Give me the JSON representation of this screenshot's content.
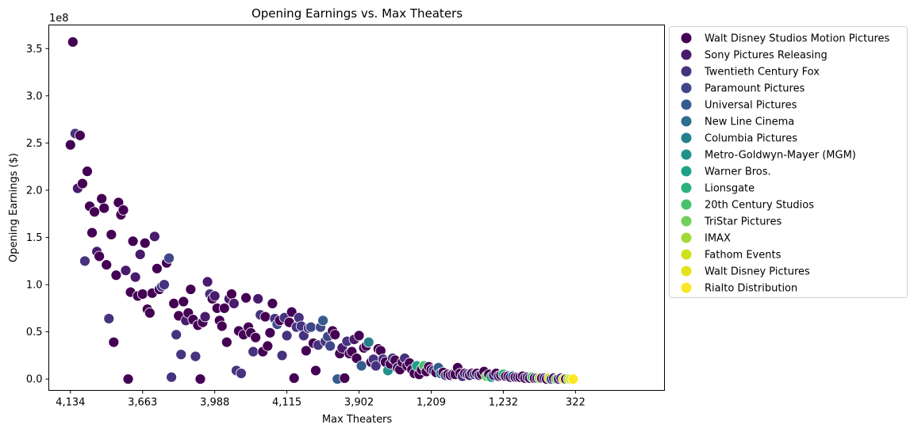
{
  "chart_data": {
    "type": "scatter",
    "title": "Opening Earnings vs. Max Theaters",
    "xlabel": "Max Theaters",
    "ylabel": "Opening Earnings ($)",
    "y_offset_label": "1e8",
    "ylim": [
      -0.12,
      3.75
    ],
    "y_scale_multiplier": 100000000,
    "y_ticks": [
      "0.0",
      "0.5",
      "1.0",
      "1.5",
      "2.0",
      "2.5",
      "3.0",
      "3.5"
    ],
    "x_tick_labels": [
      "4,134",
      "3,663",
      "3,988",
      "4,115",
      "3,902",
      "1,209",
      "1,232",
      "322"
    ],
    "x_axis_note": "categorical movie index axis, x values are ranks 0-235",
    "xlim": [
      -9,
      247
    ],
    "legend_position": "outside-right",
    "grid": false,
    "legend": [
      {
        "name": "Walt Disney Studios Motion Pictures",
        "color": "#440154"
      },
      {
        "name": "Sony Pictures Releasing",
        "color": "#481b6d"
      },
      {
        "name": "Twentieth Century Fox",
        "color": "#46327e"
      },
      {
        "name": "Paramount Pictures",
        "color": "#3f4788"
      },
      {
        "name": "Universal Pictures",
        "color": "#365c8d"
      },
      {
        "name": "New Line Cinema",
        "color": "#2e6e8e"
      },
      {
        "name": "Columbia Pictures",
        "color": "#277f8e"
      },
      {
        "name": "Metro-Goldwyn-Mayer (MGM)",
        "color": "#21918c"
      },
      {
        "name": "Warner Bros.",
        "color": "#1fa187"
      },
      {
        "name": "Lionsgate",
        "color": "#2db27d"
      },
      {
        "name": "20th Century Studios",
        "color": "#4ac16d"
      },
      {
        "name": "TriStar Pictures",
        "color": "#71cf57"
      },
      {
        "name": "IMAX",
        "color": "#a0da39"
      },
      {
        "name": "Fathom Events",
        "color": "#d0e11c"
      },
      {
        "name": "Walt Disney Pictures",
        "color": "#e2e418"
      },
      {
        "name": "Rialto Distribution",
        "color": "#fde725"
      }
    ],
    "points": [
      [
        0,
        2.48,
        0
      ],
      [
        1,
        3.57,
        0
      ],
      [
        2,
        2.6,
        2
      ],
      [
        3,
        2.02,
        1
      ],
      [
        4,
        2.58,
        0
      ],
      [
        5,
        2.07,
        0
      ],
      [
        6,
        1.25,
        2
      ],
      [
        7,
        2.2,
        0
      ],
      [
        8,
        1.83,
        0
      ],
      [
        9,
        1.55,
        0
      ],
      [
        10,
        1.77,
        0
      ],
      [
        11,
        1.35,
        1
      ],
      [
        12,
        1.3,
        0
      ],
      [
        13,
        1.91,
        0
      ],
      [
        14,
        1.81,
        0
      ],
      [
        15,
        1.21,
        0
      ],
      [
        16,
        0.64,
        2
      ],
      [
        17,
        1.53,
        0
      ],
      [
        18,
        0.39,
        0
      ],
      [
        19,
        1.1,
        0
      ],
      [
        20,
        1.87,
        0
      ],
      [
        21,
        1.74,
        0
      ],
      [
        22,
        1.79,
        0
      ],
      [
        23,
        1.15,
        1
      ],
      [
        24,
        0.0,
        0
      ],
      [
        25,
        0.92,
        0
      ],
      [
        26,
        1.46,
        0
      ],
      [
        27,
        1.08,
        1
      ],
      [
        28,
        0.88,
        0
      ],
      [
        29,
        1.32,
        1
      ],
      [
        30,
        0.9,
        0
      ],
      [
        31,
        1.44,
        0
      ],
      [
        32,
        0.74,
        0
      ],
      [
        33,
        0.7,
        0
      ],
      [
        34,
        0.91,
        0
      ],
      [
        35,
        1.51,
        1
      ],
      [
        36,
        1.17,
        0
      ],
      [
        37,
        0.95,
        0
      ],
      [
        38,
        0.98,
        2
      ],
      [
        39,
        1.0,
        2
      ],
      [
        40,
        1.23,
        0
      ],
      [
        41,
        1.28,
        3
      ],
      [
        42,
        0.02,
        2
      ],
      [
        43,
        0.8,
        0
      ],
      [
        44,
        0.47,
        2
      ],
      [
        45,
        0.67,
        0
      ],
      [
        46,
        0.26,
        2
      ],
      [
        47,
        0.82,
        0
      ],
      [
        48,
        0.62,
        1
      ],
      [
        49,
        0.7,
        0
      ],
      [
        50,
        0.95,
        0
      ],
      [
        51,
        0.63,
        0
      ],
      [
        52,
        0.24,
        2
      ],
      [
        53,
        0.57,
        0
      ],
      [
        54,
        0.0,
        0
      ],
      [
        55,
        0.6,
        0
      ],
      [
        56,
        0.66,
        1
      ],
      [
        57,
        1.03,
        1
      ],
      [
        58,
        0.9,
        2
      ],
      [
        59,
        0.85,
        0
      ],
      [
        60,
        0.88,
        1
      ],
      [
        61,
        0.75,
        0
      ],
      [
        62,
        0.62,
        0
      ],
      [
        63,
        0.56,
        0
      ],
      [
        64,
        0.75,
        0
      ],
      [
        65,
        0.39,
        0
      ],
      [
        66,
        0.85,
        1
      ],
      [
        67,
        0.9,
        0
      ],
      [
        68,
        0.8,
        1
      ],
      [
        69,
        0.09,
        2
      ],
      [
        70,
        0.51,
        0
      ],
      [
        71,
        0.06,
        2
      ],
      [
        72,
        0.47,
        0
      ],
      [
        73,
        0.86,
        0
      ],
      [
        74,
        0.55,
        0
      ],
      [
        75,
        0.49,
        0
      ],
      [
        76,
        0.29,
        2
      ],
      [
        77,
        0.44,
        0
      ],
      [
        78,
        0.85,
        1
      ],
      [
        79,
        0.68,
        2
      ],
      [
        80,
        0.29,
        0
      ],
      [
        81,
        0.66,
        0
      ],
      [
        82,
        0.35,
        0
      ],
      [
        83,
        0.49,
        0
      ],
      [
        84,
        0.8,
        0
      ],
      [
        85,
        0.64,
        2
      ],
      [
        86,
        0.58,
        3
      ],
      [
        87,
        0.62,
        0
      ],
      [
        88,
        0.25,
        2
      ],
      [
        89,
        0.65,
        2
      ],
      [
        90,
        0.46,
        2
      ],
      [
        91,
        0.6,
        0
      ],
      [
        92,
        0.71,
        0
      ],
      [
        93,
        0.01,
        0
      ],
      [
        94,
        0.55,
        2
      ],
      [
        95,
        0.65,
        2
      ],
      [
        96,
        0.56,
        2
      ],
      [
        97,
        0.46,
        2
      ],
      [
        98,
        0.3,
        0
      ],
      [
        99,
        0.54,
        2
      ],
      [
        100,
        0.55,
        3
      ],
      [
        101,
        0.38,
        0
      ],
      [
        102,
        0.09,
        0
      ],
      [
        103,
        0.36,
        2
      ],
      [
        104,
        0.55,
        3
      ],
      [
        105,
        0.62,
        4
      ],
      [
        106,
        0.4,
        2
      ],
      [
        107,
        0.45,
        3
      ],
      [
        108,
        0.35,
        3
      ],
      [
        109,
        0.51,
        0
      ],
      [
        110,
        0.47,
        0
      ],
      [
        111,
        0.0,
        4
      ],
      [
        112,
        0.27,
        0
      ],
      [
        113,
        0.33,
        1
      ],
      [
        114,
        0.01,
        0
      ],
      [
        115,
        0.4,
        2
      ],
      [
        116,
        0.27,
        0
      ],
      [
        117,
        0.29,
        0
      ],
      [
        118,
        0.42,
        1
      ],
      [
        119,
        0.22,
        0
      ],
      [
        120,
        0.46,
        0
      ],
      [
        121,
        0.14,
        4
      ],
      [
        122,
        0.33,
        0
      ],
      [
        123,
        0.35,
        0
      ],
      [
        124,
        0.39,
        6
      ],
      [
        125,
        0.18,
        0
      ],
      [
        126,
        0.21,
        2
      ],
      [
        127,
        0.14,
        2
      ],
      [
        128,
        0.32,
        0
      ],
      [
        129,
        0.3,
        0
      ],
      [
        130,
        0.21,
        2
      ],
      [
        131,
        0.18,
        0
      ],
      [
        132,
        0.09,
        7
      ],
      [
        133,
        0.16,
        0
      ],
      [
        134,
        0.22,
        2
      ],
      [
        135,
        0.2,
        0
      ],
      [
        136,
        0.12,
        1
      ],
      [
        137,
        0.1,
        0
      ],
      [
        138,
        0.18,
        0
      ],
      [
        139,
        0.22,
        2
      ],
      [
        140,
        0.14,
        0
      ],
      [
        141,
        0.17,
        0
      ],
      [
        142,
        0.1,
        0
      ],
      [
        143,
        0.06,
        0
      ],
      [
        144,
        0.14,
        8
      ],
      [
        145,
        0.05,
        0
      ],
      [
        146,
        0.1,
        0
      ],
      [
        147,
        0.14,
        10
      ],
      [
        148,
        0.08,
        0
      ],
      [
        149,
        0.13,
        0
      ],
      [
        150,
        0.1,
        0
      ],
      [
        151,
        0.09,
        2
      ],
      [
        152,
        0.07,
        0
      ],
      [
        153,
        0.12,
        4
      ],
      [
        154,
        0.06,
        5
      ],
      [
        155,
        0.07,
        0
      ],
      [
        156,
        0.04,
        3
      ],
      [
        157,
        0.05,
        0
      ],
      [
        158,
        0.04,
        0
      ],
      [
        159,
        0.05,
        1
      ],
      [
        160,
        0.05,
        0
      ],
      [
        161,
        0.12,
        0
      ],
      [
        162,
        0.06,
        0
      ],
      [
        163,
        0.03,
        2
      ],
      [
        164,
        0.06,
        0
      ],
      [
        165,
        0.05,
        2
      ],
      [
        166,
        0.04,
        1
      ],
      [
        167,
        0.06,
        0
      ],
      [
        168,
        0.05,
        3
      ],
      [
        169,
        0.06,
        0
      ],
      [
        170,
        0.04,
        2
      ],
      [
        171,
        0.05,
        0
      ],
      [
        172,
        0.08,
        0
      ],
      [
        173,
        0.03,
        11
      ],
      [
        174,
        0.05,
        0
      ],
      [
        175,
        0.02,
        8
      ],
      [
        176,
        0.04,
        1
      ],
      [
        177,
        0.06,
        0
      ],
      [
        178,
        0.03,
        2
      ],
      [
        179,
        0.04,
        0
      ],
      [
        180,
        0.05,
        9
      ],
      [
        181,
        0.03,
        0
      ],
      [
        182,
        0.03,
        1
      ],
      [
        183,
        0.02,
        0
      ],
      [
        184,
        0.03,
        4
      ],
      [
        185,
        0.02,
        0
      ],
      [
        186,
        0.02,
        1
      ],
      [
        187,
        0.02,
        0
      ],
      [
        188,
        0.03,
        1
      ],
      [
        189,
        0.01,
        0
      ],
      [
        190,
        0.02,
        2
      ],
      [
        191,
        0.01,
        0
      ],
      [
        192,
        0.02,
        10
      ],
      [
        193,
        0.01,
        0
      ],
      [
        194,
        0.01,
        1
      ],
      [
        195,
        0.01,
        12
      ],
      [
        196,
        0.01,
        0
      ],
      [
        197,
        0.01,
        2
      ],
      [
        198,
        0.0,
        0
      ],
      [
        199,
        0.01,
        13
      ],
      [
        200,
        0.0,
        3
      ],
      [
        201,
        0.01,
        0
      ],
      [
        202,
        0.0,
        11
      ],
      [
        203,
        0.0,
        1
      ],
      [
        204,
        0.01,
        2
      ],
      [
        205,
        0.0,
        14
      ],
      [
        206,
        0.0,
        0
      ],
      [
        207,
        0.0,
        12
      ],
      [
        208,
        0.0,
        13
      ],
      [
        209,
        0.0,
        15
      ]
    ]
  }
}
